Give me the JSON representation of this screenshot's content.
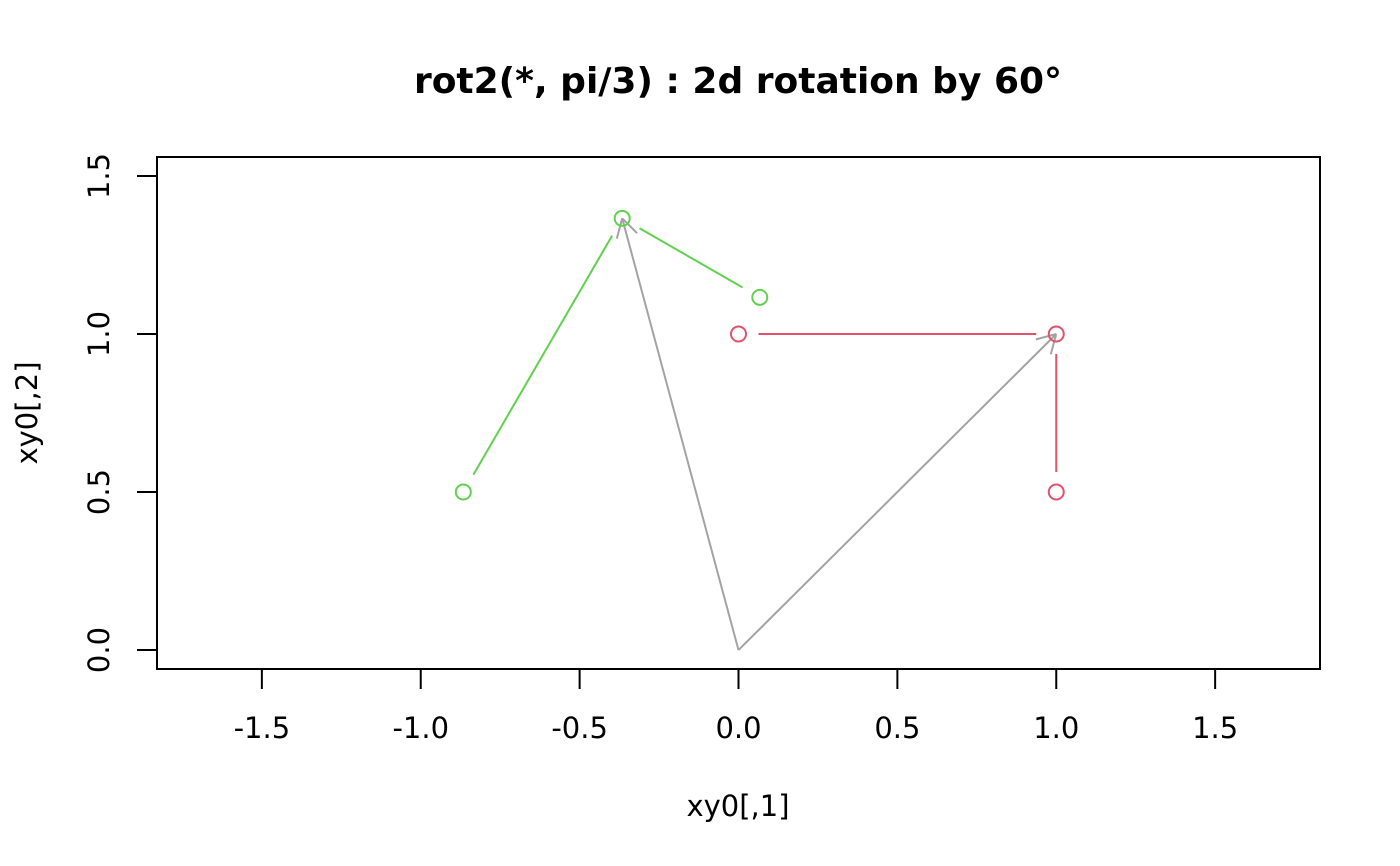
{
  "chart_data": {
    "type": "scatter",
    "title": "rot2(*, pi/3) : 2d rotation by 60°",
    "xlabel": "xy0[,1]",
    "ylabel": "xy0[,2]",
    "xlim": [
      -1.83,
      1.83
    ],
    "ylim": [
      -0.06,
      1.56
    ],
    "x_ticks": [
      -1.5,
      -1.0,
      -0.5,
      0.0,
      0.5,
      1.0,
      1.5
    ],
    "x_tick_labels": [
      "-1.5",
      "-1.0",
      "-0.5",
      "0.0",
      "0.5",
      "1.0",
      "1.5"
    ],
    "y_ticks": [
      0.0,
      0.5,
      1.0,
      1.5
    ],
    "y_tick_labels": [
      "0.0",
      "0.5",
      "1.0",
      "1.5"
    ],
    "grid": false,
    "colors": {
      "original": "#DF536B",
      "rotated": "#61D04F",
      "vector": "#A3A3A3"
    },
    "points": [
      {
        "set": "original",
        "x": 0.0,
        "y": 1.0
      },
      {
        "set": "original",
        "x": 1.0,
        "y": 1.0
      },
      {
        "set": "original",
        "x": 1.0,
        "y": 0.5
      },
      {
        "set": "rotated",
        "x": -0.866,
        "y": 0.5
      },
      {
        "set": "rotated",
        "x": -0.366,
        "y": 1.366
      },
      {
        "set": "rotated",
        "x": 0.067,
        "y": 1.116
      }
    ],
    "segments": [
      {
        "set": "original",
        "x0": 0.0,
        "y0": 1.0,
        "x1": 1.0,
        "y1": 1.0
      },
      {
        "set": "original",
        "x0": 1.0,
        "y0": 1.0,
        "x1": 1.0,
        "y1": 0.5
      },
      {
        "set": "rotated",
        "x0": -0.866,
        "y0": 0.5,
        "x1": -0.366,
        "y1": 1.366
      },
      {
        "set": "rotated",
        "x0": -0.366,
        "y0": 1.366,
        "x1": 0.067,
        "y1": 1.116
      }
    ],
    "arrows": [
      {
        "set": "vector",
        "x0": 0.0,
        "y0": 0.0,
        "x1": 1.0,
        "y1": 1.0
      },
      {
        "set": "vector",
        "x0": 0.0,
        "y0": 0.0,
        "x1": -0.366,
        "y1": 1.366
      }
    ]
  }
}
